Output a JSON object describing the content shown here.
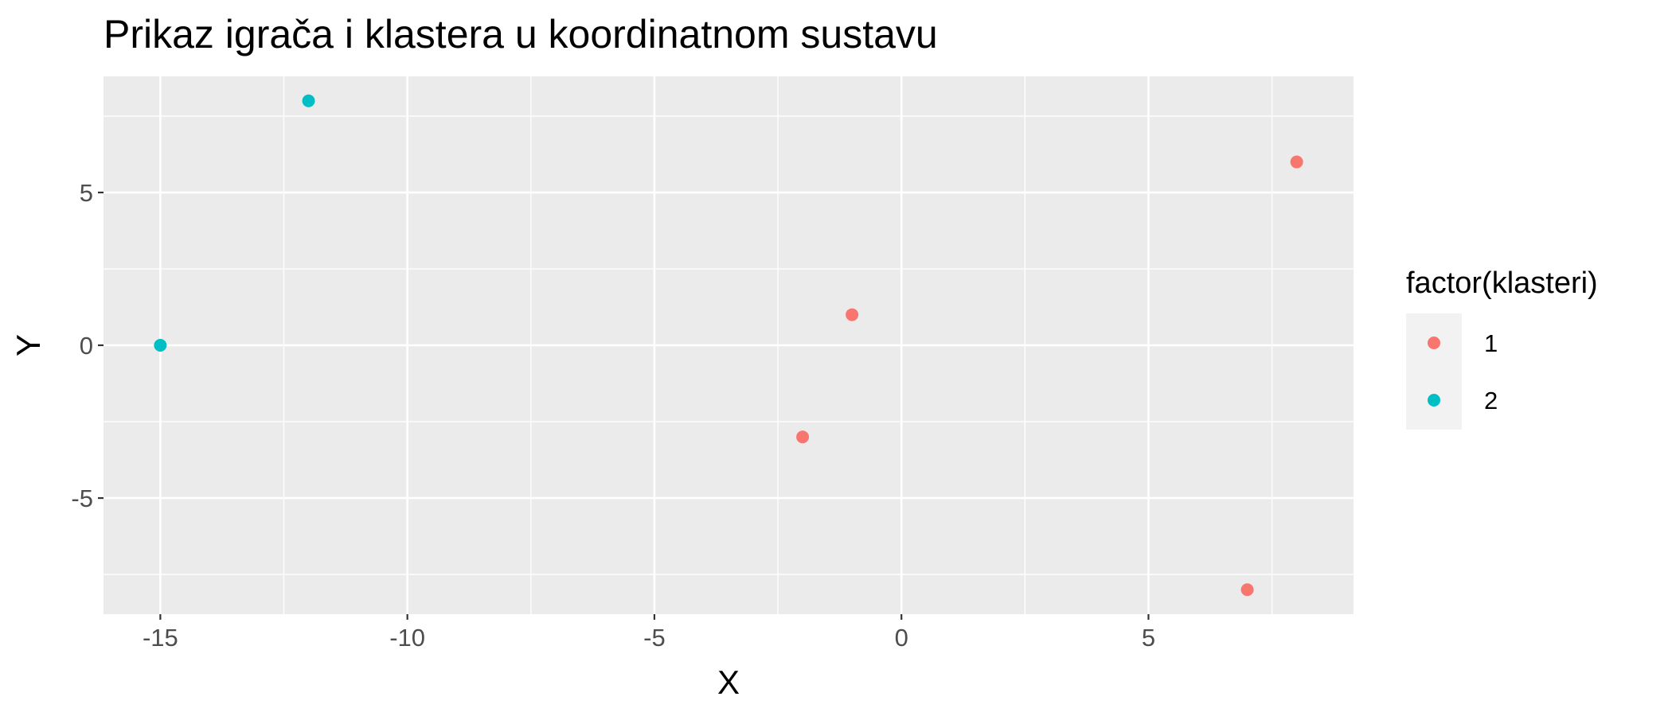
{
  "chart_data": {
    "type": "scatter",
    "title": "Prikaz igrača i klastera u koordinatnom sustavu",
    "xlabel": "X",
    "ylabel": "Y",
    "xlim": [
      -16.15,
      9.15
    ],
    "ylim": [
      -8.8,
      8.8
    ],
    "x_ticks": [
      -15,
      -10,
      -5,
      0,
      5
    ],
    "y_ticks": [
      -5,
      0,
      5
    ],
    "x_tick_labels": [
      "-15",
      "-10",
      "-5",
      "0",
      "5"
    ],
    "y_tick_labels": [
      "-5",
      "0",
      "5"
    ],
    "grid": true,
    "panel_background": "#ebebeb",
    "grid_color": "#ffffff",
    "legend": {
      "title": "factor(klasteri)",
      "placement": "right",
      "entries": [
        {
          "label": "1",
          "color": "#F8766D"
        },
        {
          "label": "2",
          "color": "#00BFC4"
        }
      ]
    },
    "series": [
      {
        "name": "1",
        "color": "#F8766D",
        "points": [
          {
            "x": 8,
            "y": 6
          },
          {
            "x": -1,
            "y": 1
          },
          {
            "x": -2,
            "y": -3
          },
          {
            "x": 7,
            "y": -8
          }
        ]
      },
      {
        "name": "2",
        "color": "#00BFC4",
        "points": [
          {
            "x": -12,
            "y": 8
          },
          {
            "x": -15,
            "y": 0
          }
        ]
      }
    ]
  }
}
